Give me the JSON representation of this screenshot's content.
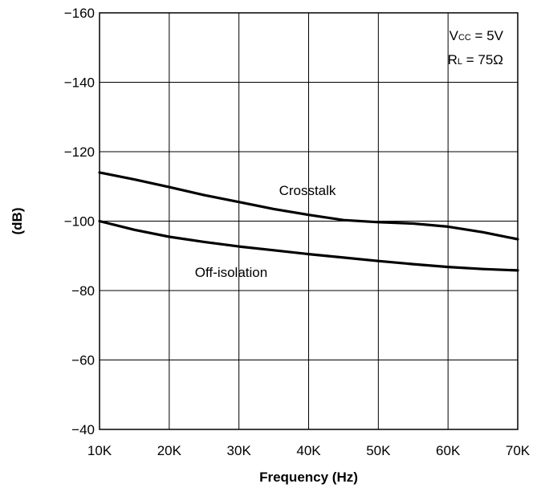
{
  "chart_data": {
    "type": "line",
    "title": "",
    "xlabel": "Frequency (Hz)",
    "ylabel": "(dB)",
    "xlim": [
      10000,
      70000
    ],
    "ylim": [
      -40,
      -160
    ],
    "grid": true,
    "x_ticks": [
      {
        "value": 10000,
        "label": "10K"
      },
      {
        "value": 20000,
        "label": "20K"
      },
      {
        "value": 30000,
        "label": "30K"
      },
      {
        "value": 40000,
        "label": "40K"
      },
      {
        "value": 50000,
        "label": "50K"
      },
      {
        "value": 60000,
        "label": "60K"
      },
      {
        "value": 70000,
        "label": "70K"
      }
    ],
    "y_ticks": [
      {
        "value": -160,
        "label": "−160"
      },
      {
        "value": -140,
        "label": "−140"
      },
      {
        "value": -120,
        "label": "−120"
      },
      {
        "value": -100,
        "label": "−100"
      },
      {
        "value": -80,
        "label": "−80"
      },
      {
        "value": -60,
        "label": "−60"
      },
      {
        "value": -40,
        "label": "−40"
      }
    ],
    "conditions": {
      "vcc": {
        "symbol": "V",
        "sub": "CC",
        "rest": " = 5V"
      },
      "rl": {
        "symbol": "R",
        "sub": "L",
        "rest": " = 75Ω"
      }
    },
    "series": [
      {
        "name": "Crosstalk",
        "x": [
          10000,
          15000,
          20000,
          25000,
          30000,
          35000,
          40000,
          45000,
          50000,
          55000,
          60000,
          65000,
          70000
        ],
        "y": [
          -114,
          -112,
          -109.8,
          -107.5,
          -105.5,
          -103.5,
          -101.8,
          -100.3,
          -99.7,
          -99.3,
          -98.4,
          -96.8,
          -94.8
        ]
      },
      {
        "name": "Off-isolation",
        "x": [
          10000,
          15000,
          20000,
          25000,
          30000,
          35000,
          40000,
          45000,
          50000,
          55000,
          60000,
          65000,
          70000
        ],
        "y": [
          -100,
          -97.5,
          -95.5,
          -94,
          -92.7,
          -91.6,
          -90.5,
          -89.5,
          -88.5,
          -87.6,
          -86.8,
          -86.2,
          -85.8
        ]
      }
    ]
  }
}
